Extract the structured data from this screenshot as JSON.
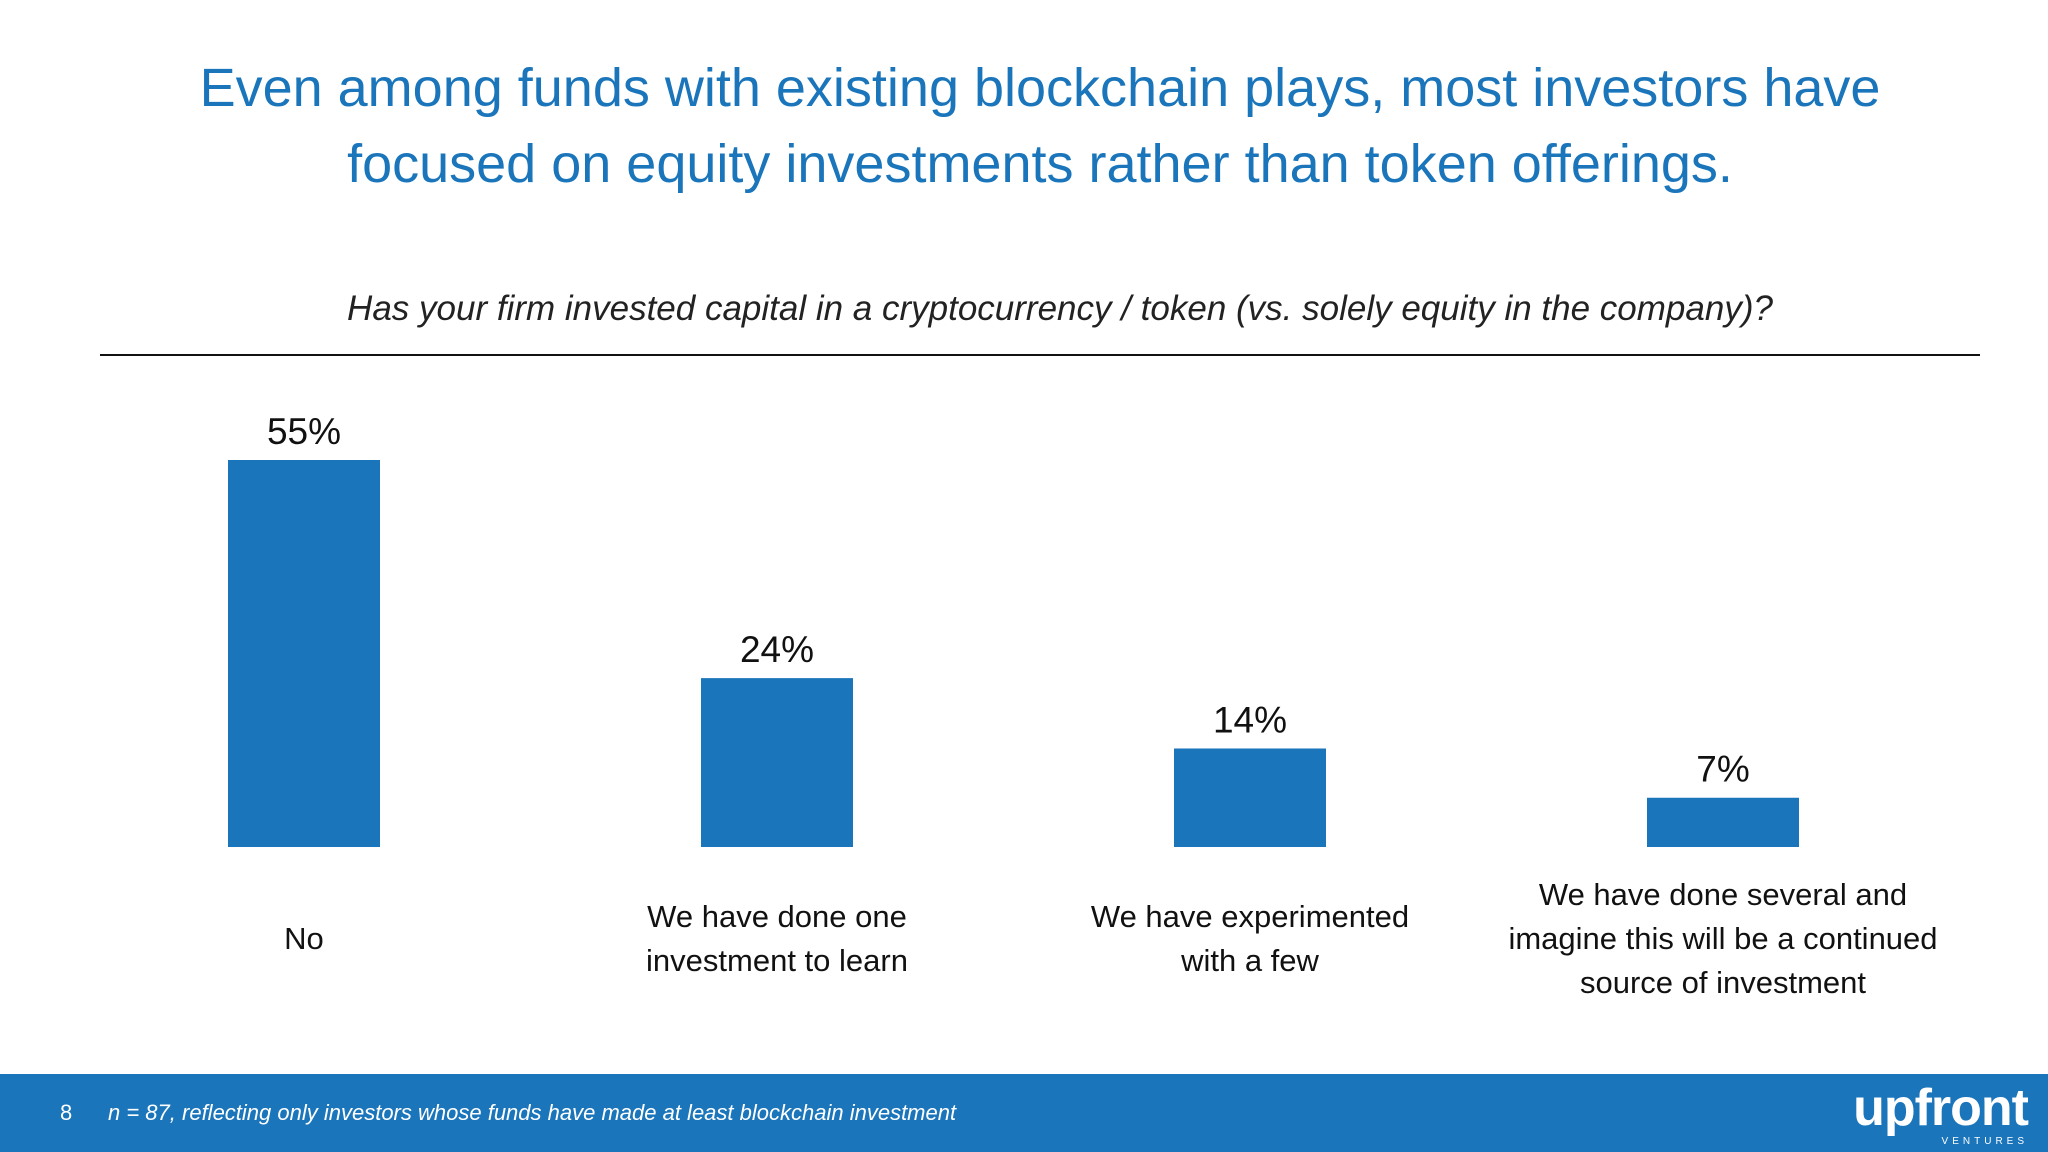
{
  "title": "Even among funds with existing blockchain plays, most investors have focused on equity investments rather than token offerings.",
  "question": "Has your firm invested capital in a cryptocurrency / token (vs. solely equity in the company)?",
  "colors": {
    "accent": "#1a75bb",
    "text": "#111111"
  },
  "chart_data": {
    "type": "bar",
    "title": "Has your firm invested capital in a cryptocurrency / token (vs. solely equity in the company)?",
    "xlabel": "",
    "ylabel": "",
    "ylim": [
      0,
      55
    ],
    "grid": false,
    "categories": [
      [
        "No"
      ],
      [
        "We have done one",
        "investment to learn"
      ],
      [
        "We have experimented",
        "with a few"
      ],
      [
        "We have done several and",
        "imagine this will be a continued",
        "source of investment"
      ]
    ],
    "values": [
      55,
      24,
      14,
      7
    ],
    "value_labels": [
      "55%",
      "24%",
      "14%",
      "7%"
    ]
  },
  "footer": {
    "page_number": "8",
    "note": "n = 87, reflecting only investors whose funds have made at least blockchain investment",
    "logo_text": "upfront",
    "logo_subtext": "VENTURES"
  }
}
